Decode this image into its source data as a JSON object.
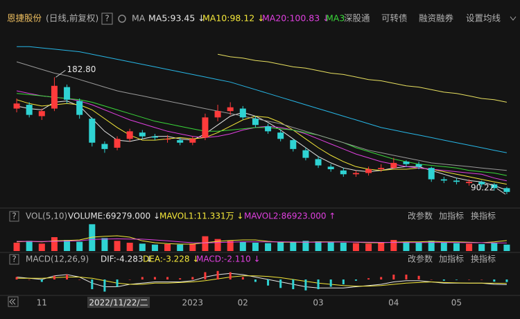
{
  "header": {
    "title": "恩捷股份",
    "subtitle": "(日线,前复权)",
    "help": "?",
    "ma_label": "MA",
    "tabs": [
      "深股通",
      "可转债",
      "融资融券",
      "设置均线"
    ]
  },
  "pane_buttons": [
    "改参数",
    "加指标",
    "换指标"
  ],
  "chart_data": [
    {
      "type": "candlestick",
      "categories": [
        null,
        null,
        "11",
        null,
        null,
        null,
        null,
        null,
        null,
        null,
        null,
        null,
        null,
        null,
        "2023",
        null,
        null,
        null,
        "02",
        null,
        null,
        null,
        null,
        null,
        "03",
        null,
        null,
        null,
        null,
        null,
        "04",
        null,
        null,
        null,
        null,
        "05",
        null,
        null,
        null,
        null
      ],
      "crosshair_label": "2022/11/22/二",
      "open": [
        158,
        161,
        152,
        158,
        175,
        164,
        150,
        130,
        127,
        134,
        139,
        136,
        134,
        133,
        131,
        135,
        151,
        156,
        158,
        150,
        144,
        139,
        133,
        125,
        118,
        112,
        109,
        106,
        107,
        110,
        111,
        116,
        114,
        111,
        102,
        101,
        99,
        100,
        98,
        95
      ],
      "high": [
        166,
        163,
        158,
        182.8,
        177,
        166,
        151,
        132,
        136,
        142,
        141,
        138,
        137,
        135,
        136,
        154,
        161,
        163,
        160,
        152,
        146,
        141,
        134,
        127,
        120,
        114,
        111,
        109,
        112,
        114,
        119,
        117,
        116,
        112,
        104,
        103,
        102,
        101,
        99,
        96
      ],
      "low": [
        155,
        151,
        149,
        156,
        162,
        150,
        128,
        123,
        125,
        132,
        134,
        133,
        131,
        129,
        129,
        133,
        148,
        153,
        149,
        143,
        138,
        132,
        124,
        117,
        111,
        108,
        104,
        104,
        105,
        108,
        110,
        112,
        110,
        100,
        99,
        98,
        97,
        96,
        93,
        90.22
      ],
      "close": [
        162,
        153,
        156,
        176,
        165,
        153,
        131,
        126,
        134,
        140,
        136,
        135,
        134,
        131,
        134,
        151,
        156,
        159,
        151,
        145,
        140,
        134,
        126,
        119,
        113,
        110,
        106,
        107,
        110,
        111,
        115,
        114,
        112,
        102,
        101,
        100,
        100,
        98,
        95,
        92
      ],
      "up_color": "#ff3b3b",
      "down_color": "#2fd3d3",
      "ylim": [
        82,
        211
      ],
      "annotations": [
        "182.80",
        "90.22"
      ],
      "series": [
        {
          "name": "MA5:93.45 ↓",
          "color": "#e6e6e6",
          "values": [
            160,
            158,
            157,
            163,
            164,
            160,
            150,
            140,
            133,
            132,
            134,
            136,
            136,
            134,
            133,
            138,
            145,
            152,
            155,
            152,
            147,
            141,
            134,
            127,
            120,
            115,
            111,
            109,
            108,
            109,
            111,
            112,
            112,
            109,
            106,
            103,
            101,
            100,
            97,
            93.45
          ]
        },
        {
          "name": "MA10:98.12 ↓",
          "color": "#f5e83a",
          "values": [
            165,
            162,
            160,
            161,
            162,
            161,
            157,
            150,
            143,
            137,
            133,
            133,
            134,
            135,
            134,
            135,
            139,
            144,
            149,
            152,
            151,
            147,
            141,
            134,
            127,
            121,
            116,
            112,
            110,
            109,
            110,
            110,
            111,
            110,
            108,
            106,
            104,
            102,
            100,
            98.12
          ]
        },
        {
          "name": "MA20:100.83 ↓",
          "color": "#e040e0",
          "values": [
            172,
            170,
            168,
            167,
            166,
            164,
            161,
            157,
            153,
            149,
            146,
            143,
            140,
            138,
            136,
            135,
            136,
            138,
            141,
            143,
            144,
            143,
            141,
            138,
            134,
            130,
            126,
            122,
            119,
            116,
            114,
            112,
            111,
            110,
            109,
            108,
            107,
            106,
            103,
            100.83
          ]
        },
        {
          "name": "MA3",
          "color": "#3ad83a",
          "values": [
            170,
            169,
            168,
            167,
            166,
            165,
            163,
            160,
            157,
            154,
            151,
            148,
            146,
            144,
            142,
            140,
            140,
            141,
            142,
            143,
            143,
            142,
            141,
            139,
            137,
            134,
            131,
            127,
            124,
            121,
            118,
            116,
            114,
            113,
            112,
            111,
            109,
            108,
            107,
            105
          ]
        },
        {
          "color": "#9a9a9a",
          "values": [
            195,
            192,
            189,
            186,
            184,
            181,
            178,
            175,
            172,
            170,
            168,
            166,
            164,
            162,
            160,
            158,
            156,
            154,
            152,
            150,
            148,
            146,
            143,
            140,
            137,
            134,
            131,
            128,
            125,
            123,
            121,
            119,
            117,
            115,
            114,
            113,
            112,
            111,
            110,
            109
          ]
        },
        {
          "color": "#27b6e6",
          "values": [
            207,
            207,
            206,
            205,
            204,
            203,
            201,
            199,
            197,
            195,
            193,
            191,
            189,
            187,
            185,
            183,
            181,
            179,
            176,
            173,
            170,
            167,
            164,
            161,
            158,
            155,
            152,
            149,
            146,
            143,
            141,
            139,
            137,
            135,
            133,
            131,
            129,
            127,
            125,
            123
          ]
        },
        {
          "color": "#e8e060",
          "values": [
            null,
            null,
            null,
            null,
            null,
            null,
            null,
            null,
            null,
            null,
            null,
            null,
            null,
            null,
            null,
            null,
            201,
            199,
            198,
            196,
            195,
            193,
            191,
            190,
            188,
            186,
            185,
            183,
            181,
            180,
            178,
            176,
            175,
            173,
            171,
            170,
            168,
            166,
            165,
            163
          ]
        }
      ]
    },
    {
      "type": "bar",
      "title": "VOL(5,10)",
      "ylim": [
        0,
        300000
      ],
      "series": [
        {
          "name": "VOLUME:69279.000 ↓",
          "type": "bar",
          "label_color": "#e6e6e6",
          "values": [
            90000,
            110000,
            80000,
            150000,
            120000,
            100000,
            290000,
            140000,
            110000,
            90000,
            80000,
            70000,
            75000,
            70000,
            80000,
            160000,
            130000,
            110000,
            100000,
            90000,
            85000,
            95000,
            100000,
            110000,
            105000,
            95000,
            90000,
            85000,
            80000,
            90000,
            120000,
            100000,
            95000,
            110000,
            90000,
            85000,
            80000,
            75000,
            90000,
            69279
          ]
        },
        {
          "name": "MAVOL1:11.331万 ↓",
          "type": "line",
          "color": "#f5e83a",
          "values": [
            100000,
            105000,
            100000,
            110000,
            115000,
            120000,
            150000,
            160000,
            165000,
            150000,
            110000,
            90000,
            80000,
            75000,
            75000,
            90000,
            105000,
            115000,
            120000,
            120000,
            105000,
            95000,
            95000,
            95000,
            100000,
            100000,
            100000,
            95000,
            90000,
            90000,
            95000,
            100000,
            100000,
            105000,
            100000,
            100000,
            95000,
            90000,
            100000,
            113310
          ]
        },
        {
          "name": "MAVOL2:86923.000 ↑",
          "type": "line",
          "color": "#e040e0",
          "values": [
            105000,
            104000,
            103000,
            105000,
            108000,
            110000,
            125000,
            130000,
            132000,
            130000,
            128000,
            120000,
            110000,
            100000,
            90000,
            88000,
            92000,
            97000,
            100000,
            100000,
            100000,
            100000,
            98000,
            96000,
            96000,
            97000,
            98000,
            97000,
            95000,
            94000,
            93000,
            92000,
            92000,
            93000,
            93000,
            92000,
            91000,
            90000,
            88000,
            86923
          ]
        }
      ]
    },
    {
      "type": "bar",
      "title": "MACD(12,26,9)",
      "ylim": [
        -12,
        12
      ],
      "series": [
        {
          "name": "DIF:-4.283 ↓",
          "type": "line",
          "color": "#e6e6e6",
          "values": [
            2,
            1,
            0,
            3,
            4,
            2,
            -3,
            -6,
            -6,
            -4,
            -3,
            -2,
            -2,
            -2,
            -1,
            2,
            4,
            5,
            4,
            2,
            0,
            -2,
            -4,
            -6,
            -7,
            -7,
            -7,
            -6,
            -5,
            -4,
            -2,
            -1,
            -1,
            -2,
            -3,
            -3,
            -3,
            -3,
            -4,
            -4.283
          ]
        },
        {
          "name": "DEA:-3.228 ↓",
          "type": "line",
          "color": "#f5e83a",
          "values": [
            1,
            1,
            1,
            1.5,
            2,
            2,
            1,
            -1,
            -3,
            -4,
            -4,
            -3,
            -3,
            -2.5,
            -2,
            -1,
            0.5,
            2,
            3,
            3,
            2.5,
            1.5,
            0,
            -1.5,
            -3,
            -4,
            -5,
            -5.5,
            -5.5,
            -5,
            -4,
            -3,
            -2.5,
            -2,
            -2.5,
            -2.8,
            -3,
            -3,
            -3.1,
            -3.228
          ]
        },
        {
          "name": "MACD:-2.110 ↓",
          "type": "bar",
          "label_color": "#e040e0",
          "values": [
            2,
            0,
            -2,
            3,
            4,
            0,
            -8,
            -10,
            -6,
            0,
            2,
            2,
            2,
            1,
            2,
            6,
            7,
            6,
            2,
            -2,
            -5,
            -7,
            -8,
            -9,
            -8,
            -6,
            -4,
            -1,
            1,
            2,
            4,
            4,
            3,
            0,
            -1,
            -0.4,
            0,
            0,
            -1.8,
            -2.11
          ]
        }
      ]
    }
  ]
}
